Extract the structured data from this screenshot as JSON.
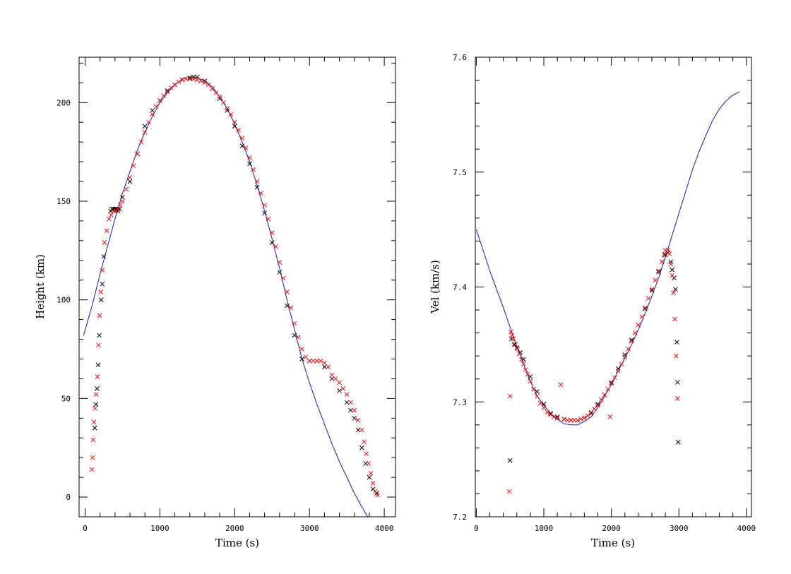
{
  "colors": {
    "model_line": "#1a1ab0",
    "obs_black": "#000000",
    "obs_red": "#ee1111",
    "axes": "#000000",
    "background": "#ffffff"
  },
  "chart_data": [
    {
      "type": "scatter",
      "id": "height",
      "xlabel": "Time (s)",
      "ylabel": "Height (km)",
      "xlim": [
        -80,
        4150
      ],
      "ylim": [
        -10,
        223
      ],
      "xticks": [
        0,
        1000,
        2000,
        3000,
        4000
      ],
      "xtick_labels": [
        "0",
        "1000",
        "2000",
        "3000",
        "4000"
      ],
      "yticks": [
        0,
        50,
        100,
        150,
        200
      ],
      "ytick_labels": [
        "0",
        "50",
        "100",
        "150",
        "200"
      ],
      "series": [
        {
          "name": "model",
          "style": "line",
          "color": "#1a1ab0",
          "x": [
            -20,
            100,
            200,
            300,
            400,
            500,
            600,
            700,
            800,
            900,
            1000,
            1100,
            1200,
            1300,
            1400,
            1450,
            1500,
            1600,
            1700,
            1800,
            1900,
            2000,
            2100,
            2200,
            2300,
            2400,
            2500,
            2600,
            2700,
            2800,
            2900,
            3000,
            3100,
            3200,
            3300,
            3400,
            3500,
            3600,
            3700,
            3780
          ],
          "y": [
            82,
            98,
            113,
            127,
            141,
            154,
            165,
            176,
            185,
            193,
            200,
            205,
            209,
            212,
            213,
            213,
            212.5,
            211,
            208,
            203,
            197,
            189,
            180,
            170,
            158,
            145,
            131,
            116,
            100,
            85,
            70,
            58,
            47,
            37,
            27,
            18,
            10,
            2,
            -5,
            -10
          ]
        },
        {
          "name": "observations-black",
          "style": "x-marker",
          "color": "#000000",
          "x": [
            130,
            145,
            160,
            175,
            190,
            215,
            230,
            250,
            340,
            360,
            380,
            400,
            420,
            440,
            460,
            500,
            600,
            700,
            800,
            900,
            1000,
            1100,
            1200,
            1300,
            1400,
            1450,
            1500,
            1600,
            1700,
            1800,
            1900,
            2000,
            2100,
            2200,
            2300,
            2400,
            2500,
            2600,
            2700,
            2800,
            2900,
            3000,
            3100,
            3200,
            3300,
            3400,
            3500,
            3550,
            3600,
            3650,
            3700,
            3750,
            3800,
            3850,
            3900
          ],
          "y": [
            35,
            47,
            55,
            67,
            82,
            100,
            108,
            122,
            145,
            146,
            146,
            146,
            146,
            145,
            146,
            152,
            160,
            174,
            188,
            196,
            201,
            206,
            209,
            211.5,
            212.5,
            213,
            213,
            211,
            207,
            202,
            196,
            188,
            178,
            169,
            157,
            144,
            129,
            114,
            97,
            82,
            70,
            69,
            69,
            66,
            60,
            54,
            48,
            44,
            40,
            34,
            25,
            17,
            10,
            4,
            2
          ]
        },
        {
          "name": "observations-red",
          "style": "x-marker",
          "color": "#ee1111",
          "x": [
            90,
            100,
            110,
            120,
            135,
            150,
            165,
            180,
            195,
            210,
            230,
            260,
            290,
            320,
            350,
            380,
            410,
            440,
            470,
            500,
            550,
            600,
            650,
            700,
            750,
            800,
            850,
            900,
            950,
            1000,
            1050,
            1100,
            1150,
            1200,
            1250,
            1300,
            1350,
            1400,
            1450,
            1500,
            1550,
            1600,
            1650,
            1700,
            1750,
            1800,
            1850,
            1900,
            1950,
            2000,
            2050,
            2100,
            2150,
            2200,
            2250,
            2300,
            2350,
            2400,
            2450,
            2500,
            2550,
            2600,
            2650,
            2700,
            2750,
            2800,
            2850,
            2900,
            2950,
            3000,
            3050,
            3100,
            3150,
            3200,
            3250,
            3300,
            3350,
            3400,
            3450,
            3500,
            3550,
            3600,
            3650,
            3700,
            3730,
            3760,
            3790,
            3820,
            3850,
            3880,
            3910
          ],
          "y": [
            14,
            20,
            29,
            38,
            45,
            52,
            61,
            77,
            92,
            104,
            115,
            129,
            135,
            141,
            143,
            145,
            145,
            146,
            148,
            150,
            156,
            162,
            168,
            174,
            180,
            185,
            190,
            194,
            198,
            201,
            203.5,
            205.5,
            207.5,
            209,
            210.5,
            211.5,
            212,
            212,
            212,
            211.5,
            211,
            210,
            209,
            207,
            205,
            203,
            200,
            197,
            194,
            190,
            186,
            182,
            177,
            172,
            166,
            160,
            154,
            148,
            141,
            134,
            127,
            119,
            111,
            104,
            96,
            88,
            81,
            75,
            71,
            69,
            69,
            69,
            69,
            68,
            66,
            62,
            60,
            58,
            55,
            52,
            48,
            44,
            39,
            34,
            28,
            22,
            17,
            12,
            7,
            3,
            1
          ]
        }
      ]
    },
    {
      "type": "scatter",
      "id": "velocity",
      "xlabel": "Time (s)",
      "ylabel": "Vel (km/s)",
      "xlim": [
        -15,
        4075
      ],
      "ylim": [
        7.2,
        7.6
      ],
      "xticks": [
        0,
        1000,
        2000,
        3000,
        4000
      ],
      "xtick_labels": [
        "0",
        "1000",
        "2000",
        "3000",
        "4000"
      ],
      "yticks": [
        7.2,
        7.3,
        7.4,
        7.5,
        7.6
      ],
      "ytick_labels": [
        "7.2",
        "7.3",
        "7.4",
        "7.5",
        "7.6"
      ],
      "series": [
        {
          "name": "model",
          "style": "line",
          "color": "#1a1ab0",
          "x": [
            0,
            100,
            200,
            300,
            400,
            500,
            600,
            700,
            800,
            900,
            1000,
            1100,
            1200,
            1300,
            1400,
            1500,
            1600,
            1700,
            1800,
            1900,
            2000,
            2100,
            2200,
            2300,
            2400,
            2500,
            2600,
            2700,
            2800,
            2900,
            3000,
            3100,
            3200,
            3300,
            3400,
            3500,
            3600,
            3700,
            3800,
            3900
          ],
          "y": [
            7.45,
            7.432,
            7.414,
            7.398,
            7.382,
            7.365,
            7.348,
            7.333,
            7.318,
            7.305,
            7.297,
            7.29,
            7.285,
            7.281,
            7.28,
            7.28,
            7.283,
            7.287,
            7.295,
            7.305,
            7.315,
            7.327,
            7.338,
            7.35,
            7.363,
            7.377,
            7.392,
            7.408,
            7.426,
            7.445,
            7.464,
            7.483,
            7.502,
            7.518,
            7.532,
            7.545,
            7.555,
            7.562,
            7.567,
            7.57
          ]
        },
        {
          "name": "observations-black",
          "style": "x-marker",
          "color": "#000000",
          "x": [
            500,
            520,
            560,
            600,
            650,
            700,
            800,
            900,
            1000,
            1100,
            1200,
            1300,
            1400,
            1500,
            1600,
            1700,
            1800,
            1900,
            2000,
            2100,
            2200,
            2300,
            2400,
            2500,
            2600,
            2700,
            2750,
            2800,
            2840,
            2880,
            2900,
            2930,
            2950,
            2970,
            2980,
            2990
          ],
          "y": [
            7.249,
            7.355,
            7.35,
            7.347,
            7.343,
            7.337,
            7.322,
            7.309,
            7.298,
            7.29,
            7.287,
            7.285,
            7.284,
            7.284,
            7.286,
            7.29,
            7.298,
            7.306,
            7.317,
            7.329,
            7.341,
            7.354,
            7.367,
            7.381,
            7.397,
            7.413,
            7.422,
            7.428,
            7.43,
            7.422,
            7.415,
            7.408,
            7.398,
            7.352,
            7.317,
            7.265
          ]
        },
        {
          "name": "observations-red",
          "style": "x-marker",
          "color": "#ee1111",
          "x": [
            490,
            500,
            510,
            530,
            550,
            580,
            610,
            640,
            670,
            700,
            730,
            760,
            800,
            850,
            900,
            950,
            1000,
            1050,
            1100,
            1150,
            1200,
            1250,
            1300,
            1350,
            1400,
            1450,
            1500,
            1550,
            1600,
            1650,
            1700,
            1750,
            1800,
            1850,
            1900,
            1950,
            1980,
            2000,
            2050,
            2100,
            2150,
            2200,
            2250,
            2300,
            2350,
            2400,
            2450,
            2500,
            2550,
            2600,
            2650,
            2700,
            2750,
            2780,
            2800,
            2820,
            2840,
            2860,
            2880,
            2900,
            2920,
            2940,
            2960,
            2980
          ],
          "y": [
            7.222,
            7.305,
            7.361,
            7.358,
            7.355,
            7.35,
            7.346,
            7.342,
            7.337,
            7.333,
            7.328,
            7.324,
            7.318,
            7.311,
            7.305,
            7.299,
            7.295,
            7.291,
            7.289,
            7.287,
            7.286,
            7.315,
            7.285,
            7.284,
            7.284,
            7.284,
            7.284,
            7.285,
            7.286,
            7.288,
            7.291,
            7.294,
            7.297,
            7.302,
            7.306,
            7.311,
            7.287,
            7.316,
            7.321,
            7.327,
            7.333,
            7.339,
            7.346,
            7.353,
            7.36,
            7.367,
            7.374,
            7.382,
            7.39,
            7.398,
            7.406,
            7.414,
            7.422,
            7.428,
            7.432,
            7.431,
            7.432,
            7.429,
            7.42,
            7.41,
            7.395,
            7.372,
            7.34,
            7.303
          ]
        }
      ]
    }
  ]
}
